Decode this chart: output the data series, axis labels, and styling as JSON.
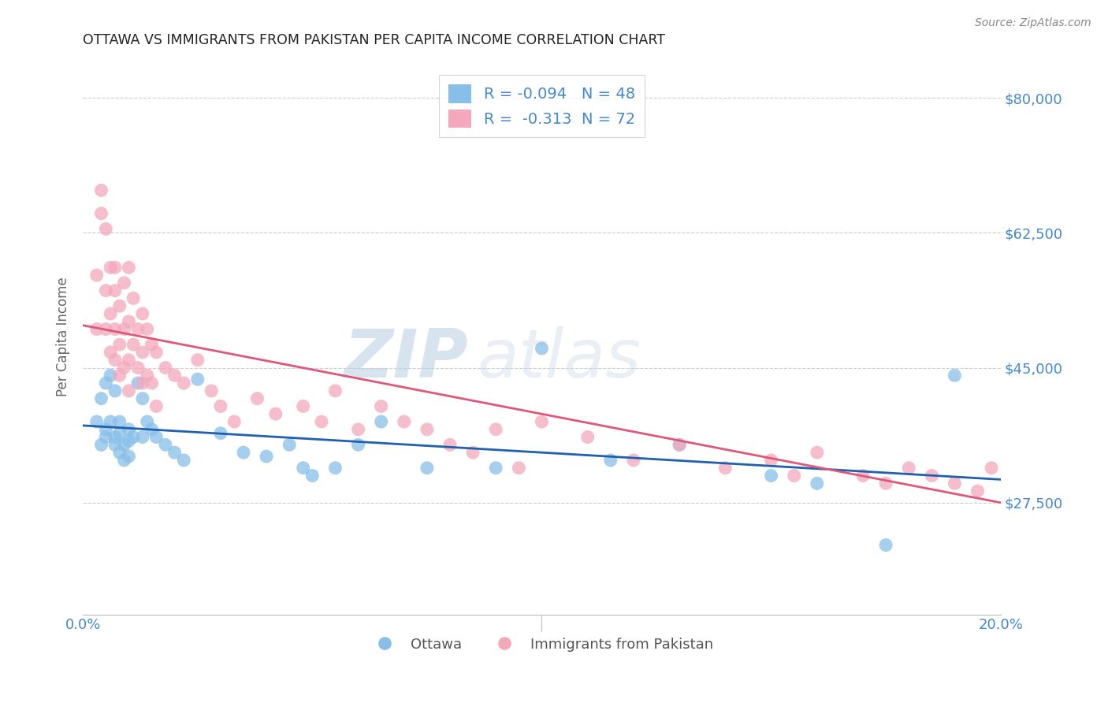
{
  "title": "OTTAWA VS IMMIGRANTS FROM PAKISTAN PER CAPITA INCOME CORRELATION CHART",
  "source": "Source: ZipAtlas.com",
  "ylabel": "Per Capita Income",
  "xlim": [
    0.0,
    0.2
  ],
  "ylim": [
    13000,
    85000
  ],
  "yticks": [
    27500,
    45000,
    62500,
    80000
  ],
  "ytick_labels": [
    "$27,500",
    "$45,000",
    "$62,500",
    "$80,000"
  ],
  "xticks": [
    0.0,
    0.05,
    0.1,
    0.15,
    0.2
  ],
  "xtick_labels": [
    "0.0%",
    "",
    "",
    "",
    "20.0%"
  ],
  "watermark_zip": "ZIP",
  "watermark_atlas": "atlas",
  "legend_labels": [
    "Ottawa",
    "Immigrants from Pakistan"
  ],
  "r_ottawa": -0.094,
  "n_ottawa": 48,
  "r_pakistan": -0.313,
  "n_pakistan": 72,
  "blue_color": "#88bfe8",
  "pink_color": "#f4a8bc",
  "blue_line_color": "#2060b0",
  "pink_line_color": "#e05878",
  "title_color": "#222222",
  "axis_label_color": "#666666",
  "tick_color": "#4488cc",
  "grid_color": "#cccccc",
  "ottawa_x": [
    0.003,
    0.004,
    0.004,
    0.005,
    0.005,
    0.005,
    0.006,
    0.006,
    0.007,
    0.007,
    0.007,
    0.008,
    0.008,
    0.008,
    0.009,
    0.009,
    0.01,
    0.01,
    0.01,
    0.011,
    0.012,
    0.013,
    0.013,
    0.014,
    0.015,
    0.016,
    0.018,
    0.02,
    0.022,
    0.025,
    0.03,
    0.035,
    0.04,
    0.045,
    0.048,
    0.05,
    0.055,
    0.06,
    0.065,
    0.075,
    0.09,
    0.1,
    0.115,
    0.13,
    0.15,
    0.16,
    0.175,
    0.19
  ],
  "ottawa_y": [
    38000,
    35000,
    41000,
    36000,
    43000,
    37000,
    38000,
    44000,
    36000,
    42000,
    35000,
    34000,
    36500,
    38000,
    35000,
    33000,
    37000,
    35500,
    33500,
    36000,
    43000,
    41000,
    36000,
    38000,
    37000,
    36000,
    35000,
    34000,
    33000,
    43500,
    36500,
    34000,
    33500,
    35000,
    32000,
    31000,
    32000,
    35000,
    38000,
    32000,
    32000,
    47500,
    33000,
    35000,
    31000,
    30000,
    22000,
    44000
  ],
  "pakistan_x": [
    0.003,
    0.003,
    0.004,
    0.004,
    0.005,
    0.005,
    0.005,
    0.006,
    0.006,
    0.006,
    0.007,
    0.007,
    0.007,
    0.007,
    0.008,
    0.008,
    0.008,
    0.009,
    0.009,
    0.009,
    0.01,
    0.01,
    0.01,
    0.01,
    0.011,
    0.011,
    0.012,
    0.012,
    0.013,
    0.013,
    0.013,
    0.014,
    0.014,
    0.015,
    0.015,
    0.016,
    0.016,
    0.018,
    0.02,
    0.022,
    0.025,
    0.028,
    0.03,
    0.033,
    0.038,
    0.042,
    0.048,
    0.052,
    0.055,
    0.06,
    0.065,
    0.07,
    0.075,
    0.08,
    0.085,
    0.09,
    0.095,
    0.1,
    0.11,
    0.12,
    0.13,
    0.14,
    0.15,
    0.155,
    0.16,
    0.17,
    0.175,
    0.18,
    0.185,
    0.19,
    0.195,
    0.198
  ],
  "pakistan_y": [
    57000,
    50000,
    68000,
    65000,
    55000,
    50000,
    63000,
    58000,
    52000,
    47000,
    55000,
    50000,
    46000,
    58000,
    53000,
    48000,
    44000,
    56000,
    50000,
    45000,
    58000,
    51000,
    46000,
    42000,
    54000,
    48000,
    50000,
    45000,
    52000,
    47000,
    43000,
    50000,
    44000,
    48000,
    43000,
    47000,
    40000,
    45000,
    44000,
    43000,
    46000,
    42000,
    40000,
    38000,
    41000,
    39000,
    40000,
    38000,
    42000,
    37000,
    40000,
    38000,
    37000,
    35000,
    34000,
    37000,
    32000,
    38000,
    36000,
    33000,
    35000,
    32000,
    33000,
    31000,
    34000,
    31000,
    30000,
    32000,
    31000,
    30000,
    29000,
    32000
  ],
  "blue_line_x0": 0.0,
  "blue_line_y0": 37500,
  "blue_line_x1": 0.2,
  "blue_line_y1": 30500,
  "pink_line_x0": 0.0,
  "pink_line_y0": 50500,
  "pink_line_x1": 0.2,
  "pink_line_y1": 27500
}
